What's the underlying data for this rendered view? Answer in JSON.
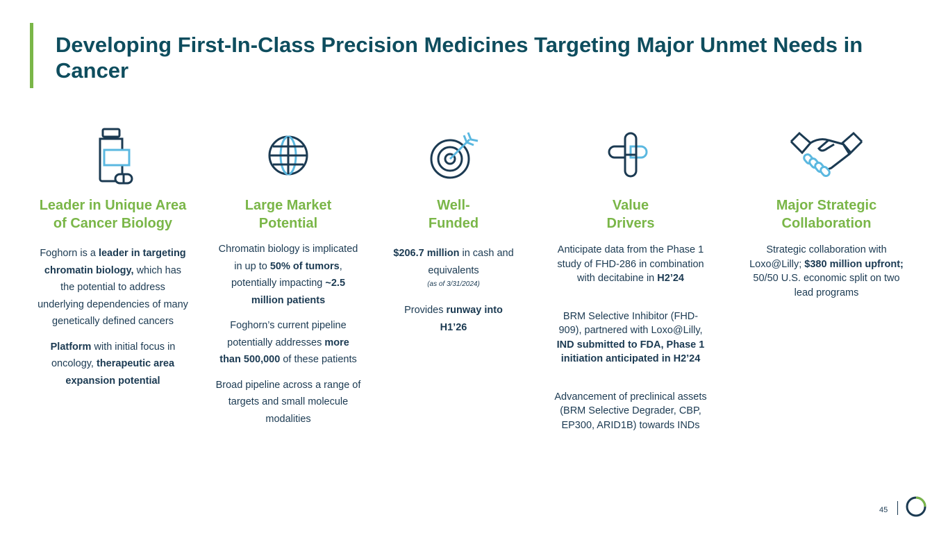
{
  "page": {
    "title": "Developing First-In-Class Precision Medicines Targeting Major Unmet Needs in Cancer",
    "page_number": "45"
  },
  "colors": {
    "dark": "#1b3a52",
    "teal_title": "#0e4d5e",
    "green": "#7ab648",
    "light_blue": "#5bb8e0"
  },
  "columns": [
    {
      "icon": "medicine-bottle-icon",
      "heading": [
        "Leader in Unique Area",
        "of Cancer Biology"
      ],
      "paragraphs": [
        [
          {
            "t": "Foghorn is a ",
            "b": false
          },
          {
            "t": "leader in targeting chromatin biology,",
            "b": true
          },
          {
            "t": " which has the potential to address underlying dependencies of many genetically defined cancers",
            "b": false
          }
        ],
        [
          {
            "t": "Platform",
            "b": true
          },
          {
            "t": " with initial focus in oncology, ",
            "b": false
          },
          {
            "t": "therapeutic area expansion potential",
            "b": true
          }
        ]
      ]
    },
    {
      "icon": "globe-icon",
      "heading": [
        "Large Market",
        "Potential"
      ],
      "paragraphs": [
        [
          {
            "t": "Chromatin biology is implicated in up to ",
            "b": false
          },
          {
            "t": "50% of tumors",
            "b": true
          },
          {
            "t": ", potentially impacting ",
            "b": false
          },
          {
            "t": "~2.5 million patients",
            "b": true
          }
        ],
        [
          {
            "t": "Foghorn’s current pipeline potentially addresses ",
            "b": false
          },
          {
            "t": "more than 500,000",
            "b": true
          },
          {
            "t": " of these patients",
            "b": false
          }
        ],
        [
          {
            "t": "Broad pipeline across a range of targets and small molecule modalities",
            "b": false
          }
        ]
      ]
    },
    {
      "icon": "target-icon",
      "heading": [
        "Well-",
        "Funded"
      ],
      "para1": [
        {
          "t": "$206.7 million",
          "b": true
        },
        {
          "t": " in cash and equivalents",
          "b": false
        }
      ],
      "note": "(as of 3/31/2024)",
      "para2": [
        {
          "t": "Provides ",
          "b": false
        },
        {
          "t": "runway into H1’26",
          "b": true
        }
      ]
    },
    {
      "icon": "medical-cross-icon",
      "heading": [
        "Value",
        "Drivers"
      ],
      "paragraphs": [
        [
          {
            "t": "Anticipate data from the Phase 1 study of FHD-286 in combination with decitabine in ",
            "b": false
          },
          {
            "t": "H2’24",
            "b": true
          }
        ],
        [
          {
            "t": "BRM Selective Inhibitor (FHD-909), partnered with Loxo@Lilly, ",
            "b": false
          },
          {
            "t": "IND submitted to FDA, Phase 1 initiation anticipated in H2’24",
            "b": true
          }
        ],
        [
          {
            "t": "Advancement of preclinical assets (BRM Selective Degrader, CBP, EP300, ARID1B) towards INDs",
            "b": false
          }
        ]
      ]
    },
    {
      "icon": "handshake-icon",
      "heading": [
        "Major Strategic",
        "Collaboration"
      ],
      "paragraphs": [
        [
          {
            "t": "Strategic collaboration with Loxo@Lilly; ",
            "b": false
          },
          {
            "t": "$380 million upfront;",
            "b": true
          },
          {
            "t": " 50/50 U.S. economic split on two lead programs",
            "b": false
          }
        ]
      ]
    }
  ]
}
